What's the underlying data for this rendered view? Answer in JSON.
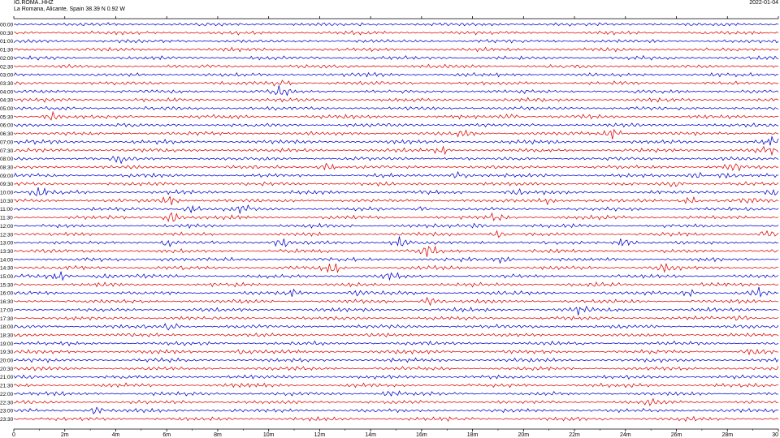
{
  "header": {
    "station": "IG.ROMA..HHZ",
    "location": "La Romana, Alicante, Spain  38.39 N 0.92 W",
    "date": "2022-01-04"
  },
  "chart_data": {
    "type": "line",
    "title": "IG.ROMA..HHZ",
    "subtitle": "La Romana, Alicante, Spain  38.39 N 0.92 W",
    "xlabel": "",
    "ylabel": "",
    "xlim": [
      0,
      30
    ],
    "x_ticks": [
      "0",
      "2m",
      "4m",
      "6m",
      "8m",
      "10m",
      "12m",
      "14m",
      "16m",
      "18m",
      "20m",
      "22m",
      "24m",
      "26m",
      "28m",
      "30"
    ],
    "colors": [
      "#0000cc",
      "#dd0000"
    ],
    "grid": false,
    "legend": "none",
    "rows": [
      {
        "label": "00:00",
        "events": []
      },
      {
        "label": "00:30",
        "events": []
      },
      {
        "label": "01:00",
        "events": []
      },
      {
        "label": "01:30",
        "events": []
      },
      {
        "label": "02:00",
        "events": []
      },
      {
        "label": "02:30",
        "events": []
      },
      {
        "label": "03:00",
        "events": []
      },
      {
        "label": "03:30",
        "events": [
          {
            "t": 10.5,
            "amp": 1.5
          }
        ]
      },
      {
        "label": "04:00",
        "events": [
          {
            "t": 10.5,
            "amp": 2.6
          }
        ]
      },
      {
        "label": "04:30",
        "events": []
      },
      {
        "label": "05:00",
        "events": []
      },
      {
        "label": "05:30",
        "events": [
          {
            "t": 1.5,
            "amp": 2.4
          },
          {
            "t": 19.5,
            "amp": 1.2
          }
        ]
      },
      {
        "label": "06:00",
        "events": []
      },
      {
        "label": "06:30",
        "events": [
          {
            "t": 17.6,
            "amp": 2.0
          },
          {
            "t": 23.5,
            "amp": 2.6
          }
        ]
      },
      {
        "label": "07:00",
        "events": [
          {
            "t": 29.7,
            "amp": 2.4
          }
        ]
      },
      {
        "label": "07:30",
        "events": [
          {
            "t": 16.8,
            "amp": 2.0
          },
          {
            "t": 29.5,
            "amp": 2.4
          }
        ]
      },
      {
        "label": "08:00",
        "events": [
          {
            "t": 4.2,
            "amp": 2.0
          }
        ]
      },
      {
        "label": "08:30",
        "events": [
          {
            "t": 12.3,
            "amp": 2.4
          },
          {
            "t": 28.3,
            "amp": 2.2
          }
        ]
      },
      {
        "label": "09:00",
        "events": [
          {
            "t": 17.5,
            "amp": 2.0
          },
          {
            "t": 26.8,
            "amp": 1.8
          },
          {
            "t": 28.0,
            "amp": 1.6
          }
        ]
      },
      {
        "label": "09:30",
        "events": [
          {
            "t": 26.0,
            "amp": 1.8
          }
        ]
      },
      {
        "label": "10:00",
        "events": [
          {
            "t": 1.0,
            "amp": 2.4
          },
          {
            "t": 19.7,
            "amp": 2.4
          },
          {
            "t": 29.8,
            "amp": 1.6
          }
        ]
      },
      {
        "label": "10:30",
        "events": [
          {
            "t": 6.1,
            "amp": 1.8
          },
          {
            "t": 21.0,
            "amp": 1.6
          },
          {
            "t": 26.5,
            "amp": 1.8
          },
          {
            "t": 28.8,
            "amp": 1.6
          }
        ]
      },
      {
        "label": "11:00",
        "events": [
          {
            "t": 7.0,
            "amp": 2.2
          },
          {
            "t": 9.0,
            "amp": 1.8
          },
          {
            "t": 16.0,
            "amp": 1.4
          }
        ]
      },
      {
        "label": "11:30",
        "events": [
          {
            "t": 6.2,
            "amp": 2.8
          },
          {
            "t": 19.0,
            "amp": 2.0
          }
        ]
      },
      {
        "label": "12:00",
        "events": [
          {
            "t": 18.2,
            "amp": 1.8
          }
        ]
      },
      {
        "label": "12:30",
        "events": [
          {
            "t": 19.0,
            "amp": 1.6
          },
          {
            "t": 29.5,
            "amp": 1.6
          }
        ]
      },
      {
        "label": "13:00",
        "events": [
          {
            "t": 6.0,
            "amp": 2.0
          },
          {
            "t": 10.5,
            "amp": 2.4
          },
          {
            "t": 15.2,
            "amp": 3.0
          },
          {
            "t": 24.0,
            "amp": 2.4
          }
        ]
      },
      {
        "label": "13:30",
        "events": [
          {
            "t": 16.3,
            "amp": 2.2
          }
        ]
      },
      {
        "label": "14:00",
        "events": [
          {
            "t": 6.0,
            "amp": 1.8
          },
          {
            "t": 19.2,
            "amp": 2.2
          }
        ]
      },
      {
        "label": "14:30",
        "events": [
          {
            "t": 12.5,
            "amp": 2.2
          },
          {
            "t": 25.5,
            "amp": 1.6
          }
        ]
      },
      {
        "label": "15:00",
        "events": [
          {
            "t": 1.7,
            "amp": 2.2
          },
          {
            "t": 3.5,
            "amp": 1.6
          },
          {
            "t": 14.8,
            "amp": 1.6
          }
        ]
      },
      {
        "label": "15:30",
        "events": []
      },
      {
        "label": "16:00",
        "events": [
          {
            "t": 11.0,
            "amp": 2.0
          },
          {
            "t": 13.5,
            "amp": 2.2
          },
          {
            "t": 26.5,
            "amp": 1.8
          },
          {
            "t": 29.2,
            "amp": 2.2
          }
        ]
      },
      {
        "label": "16:30",
        "events": [
          {
            "t": 16.3,
            "amp": 2.2
          }
        ]
      },
      {
        "label": "17:00",
        "events": [
          {
            "t": 22.2,
            "amp": 2.0
          }
        ]
      },
      {
        "label": "17:30",
        "events": [
          {
            "t": 28.5,
            "amp": 1.4
          }
        ]
      },
      {
        "label": "18:00",
        "events": [
          {
            "t": 6.2,
            "amp": 1.8
          }
        ]
      },
      {
        "label": "18:30",
        "events": []
      },
      {
        "label": "19:00",
        "events": []
      },
      {
        "label": "19:30",
        "events": [
          {
            "t": 9.0,
            "amp": 1.6
          },
          {
            "t": 29.0,
            "amp": 2.2
          }
        ]
      },
      {
        "label": "20:00",
        "events": []
      },
      {
        "label": "20:30",
        "events": []
      },
      {
        "label": "21:00",
        "events": []
      },
      {
        "label": "21:30",
        "events": []
      },
      {
        "label": "22:00",
        "events": [
          {
            "t": 14.8,
            "amp": 1.6
          }
        ]
      },
      {
        "label": "22:30",
        "events": [
          {
            "t": 25.0,
            "amp": 1.4
          }
        ]
      },
      {
        "label": "23:00",
        "events": [
          {
            "t": 3.2,
            "amp": 1.6
          }
        ]
      },
      {
        "label": "23:30",
        "events": []
      }
    ]
  }
}
